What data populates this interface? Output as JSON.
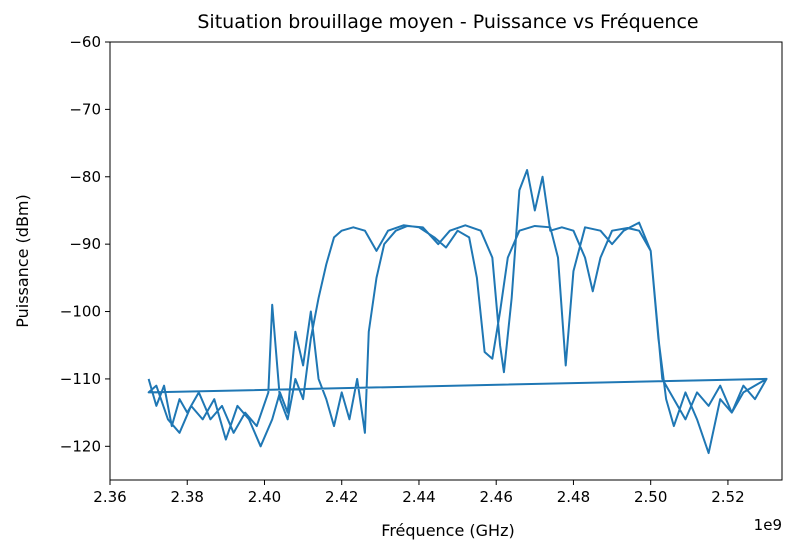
{
  "chart_data": {
    "type": "line",
    "title": "Situation brouillage moyen - Puissance vs Fréquence",
    "xlabel": "Fréquence (GHz)",
    "ylabel": "Puissance (dBm)",
    "x_offset_label": "1e9",
    "xlim": [
      2.36,
      2.534
    ],
    "ylim": [
      -125,
      -60
    ],
    "xticks": [
      2.36,
      2.38,
      2.4,
      2.42,
      2.44,
      2.46,
      2.48,
      2.5,
      2.52
    ],
    "yticks": [
      {
        "value": -120,
        "label": "−120"
      },
      {
        "value": -110,
        "label": "−110"
      },
      {
        "value": -100,
        "label": "−100"
      },
      {
        "value": -90,
        "label": "−90"
      },
      {
        "value": -80,
        "label": "−80"
      },
      {
        "value": -70,
        "label": "−70"
      },
      {
        "value": -60,
        "label": "−60"
      }
    ],
    "grid": false,
    "x": [
      2.37,
      2.372,
      2.374,
      2.376,
      2.378,
      2.38,
      2.383,
      2.386,
      2.389,
      2.392,
      2.395,
      2.398,
      2.401,
      2.402,
      2.404,
      2.406,
      2.408,
      2.41,
      2.412,
      2.414,
      2.416,
      2.418,
      2.42,
      2.423,
      2.426,
      2.429,
      2.432,
      2.436,
      2.44,
      2.444,
      2.447,
      2.45,
      2.453,
      2.455,
      2.457,
      2.459,
      2.461,
      2.463,
      2.466,
      2.47,
      2.474,
      2.476,
      2.478,
      2.48,
      2.483,
      2.487,
      2.49,
      2.493,
      2.497,
      2.5,
      2.502,
      2.504,
      2.506,
      2.509,
      2.512,
      2.515,
      2.518,
      2.521,
      2.524,
      2.527,
      2.53,
      2.37,
      2.372,
      2.375,
      2.378,
      2.381,
      2.384,
      2.387,
      2.39,
      2.393,
      2.396,
      2.399,
      2.402,
      2.404,
      2.406,
      2.408,
      2.41,
      2.412,
      2.414,
      2.416,
      2.418,
      2.42,
      2.422,
      2.424,
      2.426,
      2.427,
      2.429,
      2.431,
      2.434,
      2.437,
      2.441,
      2.445,
      2.448,
      2.452,
      2.456,
      2.459,
      2.461,
      2.462,
      2.464,
      2.466,
      2.468,
      2.47,
      2.472,
      2.474,
      2.477,
      2.48,
      2.483,
      2.485,
      2.487,
      2.49,
      2.494,
      2.497,
      2.5,
      2.503,
      2.506,
      2.509,
      2.512,
      2.515,
      2.518,
      2.521,
      2.524,
      2.527,
      2.53
    ],
    "series": [
      {
        "name": "Puissance",
        "color": "#1f77b4",
        "values": [
          -110,
          -114,
          -111,
          -117,
          -113,
          -115,
          -112,
          -116,
          -114,
          -118,
          -115,
          -117,
          -112,
          -99,
          -113,
          -116,
          -110,
          -113,
          -104,
          -98,
          -93,
          -89,
          -88,
          -87.5,
          -88,
          -91,
          -88,
          -87.2,
          -87.5,
          -89,
          -90.5,
          -88,
          -89,
          -95,
          -106,
          -107,
          -100,
          -92,
          -88,
          -87.3,
          -87.5,
          -92,
          -108,
          -94,
          -87.5,
          -88,
          -90,
          -88,
          -86.8,
          -91,
          -104,
          -113,
          -117,
          -112,
          -116,
          -121,
          -113,
          -115,
          -111,
          -113,
          -110,
          -112,
          -111,
          -116,
          -118,
          -114,
          -116,
          -113,
          -119,
          -114,
          -116,
          -120,
          -116,
          -112,
          -115,
          -103,
          -108,
          -100,
          -110,
          -113,
          -117,
          -112,
          -116,
          -110,
          -118,
          -103,
          -95,
          -90,
          -88,
          -87.3,
          -87.5,
          -90,
          -88,
          -87.2,
          -88,
          -92,
          -105,
          -109,
          -98,
          -82,
          -79,
          -85,
          -80,
          -88,
          -87.5,
          -88,
          -92,
          -97,
          -92,
          -88,
          -87.6,
          -88,
          -91,
          -110,
          -113,
          -116,
          -112,
          -114,
          -111,
          -115,
          -112,
          -111,
          -110
        ]
      }
    ]
  }
}
